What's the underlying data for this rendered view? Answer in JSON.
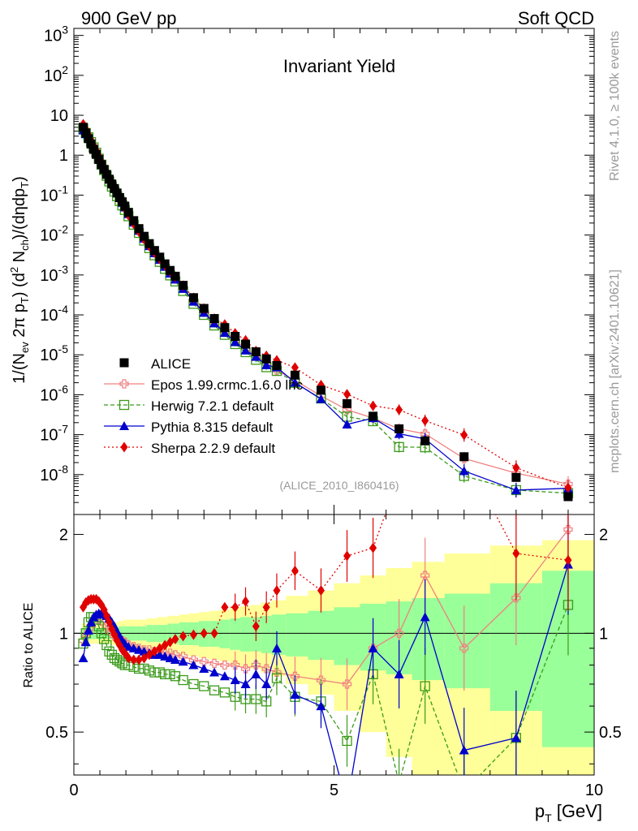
{
  "header": {
    "left": "900 GeV pp",
    "right": "Soft QCD",
    "side_top": "Rivet 4.1.0, ≥ 100k events",
    "side_bottom": "mcplots.cern.ch [arXiv:2401.10621]"
  },
  "chart_data": {
    "type": "scatter",
    "title": "Invariant Yield",
    "analysis_id": "(ALICE_2010_I860416)",
    "xlabel": "p_T [GeV]",
    "xlabel_main": "p",
    "xlabel_sub": "T",
    "xlabel_units": " [GeV]",
    "ylabel": "1/(N_ev 2π p_T) (d² N_ch)/(dηdp_T)",
    "ylabel_ratio": "Ratio to ALICE",
    "xlim": [
      0,
      10
    ],
    "ylim": [
      1e-09,
      1500
    ],
    "ylim_ratio": [
      0.37,
      2.3
    ],
    "yscale": "log",
    "x_ticks": [
      "0",
      "5",
      "10"
    ],
    "y_ticks": [
      "10^-8",
      "10^-7",
      "10^-6",
      "10^-5",
      "10^-4",
      "10^-3",
      "10^-2",
      "10^-1",
      "1",
      "10",
      "10^2",
      "10^3"
    ],
    "ratio_ticks": [
      "0.5",
      "1",
      "2"
    ],
    "legend": [
      {
        "name": "ALICE",
        "color": "#000000",
        "marker": "square-filled",
        "line": "none"
      },
      {
        "name": "Epos 1.99.crmc.1.6.0 lhc",
        "color": "#f08080",
        "marker": "cross-open",
        "line": "solid"
      },
      {
        "name": "Herwig 7.2.1 default",
        "color": "#3a9a1a",
        "marker": "square-open",
        "line": "dashed"
      },
      {
        "name": "Pythia 8.315 default",
        "color": "#0000cc",
        "marker": "triangle",
        "line": "solid"
      },
      {
        "name": "Sherpa 2.2.9 default",
        "color": "#e00000",
        "marker": "diamond",
        "line": "dotted"
      }
    ],
    "x": [
      0.18,
      0.23,
      0.28,
      0.33,
      0.38,
      0.43,
      0.48,
      0.53,
      0.58,
      0.63,
      0.68,
      0.73,
      0.78,
      0.83,
      0.88,
      0.93,
      0.98,
      1.05,
      1.15,
      1.25,
      1.35,
      1.45,
      1.55,
      1.65,
      1.75,
      1.85,
      1.95,
      2.1,
      2.3,
      2.5,
      2.7,
      2.9,
      3.1,
      3.3,
      3.5,
      3.7,
      3.9,
      4.25,
      4.75,
      5.25,
      5.75,
      6.25,
      6.75,
      7.5,
      8.5,
      9.5
    ],
    "alice": [
      5.0,
      3.6,
      2.6,
      1.9,
      1.4,
      1.05,
      0.78,
      0.58,
      0.44,
      0.33,
      0.25,
      0.19,
      0.146,
      0.113,
      0.087,
      0.068,
      0.053,
      0.037,
      0.023,
      0.0145,
      0.0093,
      0.0061,
      0.0041,
      0.0028,
      0.0019,
      0.0013,
      0.00093,
      0.00055,
      0.00027,
      0.000145,
      8.1e-05,
      4.8e-05,
      2.9e-05,
      1.85e-05,
      1.19e-05,
      7.9e-06,
      5.4e-06,
      3.1e-06,
      1.3e-06,
      6e-07,
      2.9e-07,
      1.4e-07,
      7e-08,
      2.8e-08,
      8.5e-09,
      2.8e-09
    ],
    "ratio_epos": [
      0.95,
      0.98,
      1.01,
      1.05,
      1.08,
      1.1,
      1.1,
      1.09,
      1.07,
      1.05,
      1.02,
      1.0,
      0.98,
      0.97,
      0.96,
      0.95,
      0.94,
      0.92,
      0.91,
      0.9,
      0.89,
      0.89,
      0.88,
      0.88,
      0.87,
      0.87,
      0.86,
      0.85,
      0.83,
      0.82,
      0.81,
      0.8,
      0.8,
      0.78,
      0.8,
      0.78,
      0.76,
      0.74,
      0.72,
      0.7,
      0.9,
      1.0,
      1.5,
      0.9,
      1.28,
      2.07
    ],
    "ratio_herwig": [
      0.93,
      1.0,
      1.08,
      1.12,
      1.12,
      1.1,
      1.05,
      1.0,
      0.96,
      0.92,
      0.88,
      0.86,
      0.84,
      0.83,
      0.82,
      0.81,
      0.8,
      0.8,
      0.79,
      0.78,
      0.78,
      0.77,
      0.76,
      0.76,
      0.75,
      0.75,
      0.74,
      0.72,
      0.7,
      0.69,
      0.67,
      0.66,
      0.64,
      0.63,
      0.63,
      0.62,
      0.73,
      0.64,
      0.62,
      0.47,
      0.75,
      0.35,
      0.69,
      0.33,
      0.48,
      1.22
    ],
    "ratio_pythia": [
      0.84,
      0.94,
      1.02,
      1.08,
      1.12,
      1.14,
      1.15,
      1.15,
      1.14,
      1.13,
      1.11,
      1.08,
      1.05,
      1.01,
      0.98,
      0.95,
      0.93,
      0.91,
      0.9,
      0.89,
      0.88,
      0.87,
      0.86,
      0.86,
      0.85,
      0.84,
      0.83,
      0.82,
      0.8,
      0.78,
      0.76,
      0.74,
      0.72,
      0.7,
      0.75,
      0.7,
      0.9,
      0.65,
      0.6,
      0.3,
      0.9,
      0.75,
      1.12,
      0.44,
      0.48,
      1.62
    ],
    "ratio_sherpa": [
      1.2,
      1.24,
      1.26,
      1.27,
      1.27,
      1.27,
      1.25,
      1.22,
      1.18,
      1.13,
      1.08,
      1.03,
      0.99,
      0.95,
      0.92,
      0.89,
      0.87,
      0.84,
      0.83,
      0.83,
      0.84,
      0.86,
      0.88,
      0.9,
      0.92,
      0.94,
      0.96,
      0.98,
      0.99,
      1.0,
      1.0,
      1.2,
      1.2,
      1.25,
      1.05,
      1.2,
      1.35,
      1.55,
      1.35,
      1.72,
      1.82,
      3.0,
      3.2,
      3.5,
      1.75,
      1.67
    ],
    "band_green_halfwidth": [
      0.04,
      0.04,
      0.04,
      0.04,
      0.04,
      0.04,
      0.04,
      0.04,
      0.04,
      0.04,
      0.04,
      0.04,
      0.04,
      0.04,
      0.05,
      0.05,
      0.05,
      0.05,
      0.05,
      0.05,
      0.05,
      0.06,
      0.06,
      0.06,
      0.06,
      0.07,
      0.07,
      0.08,
      0.08,
      0.09,
      0.09,
      0.1,
      0.11,
      0.12,
      0.12,
      0.13,
      0.14,
      0.15,
      0.17,
      0.2,
      0.23,
      0.25,
      0.28,
      0.32,
      0.42,
      0.55
    ],
    "band_yellow_halfwidth": [
      0.07,
      0.07,
      0.07,
      0.07,
      0.07,
      0.07,
      0.07,
      0.07,
      0.07,
      0.07,
      0.07,
      0.08,
      0.08,
      0.08,
      0.09,
      0.09,
      0.1,
      0.1,
      0.1,
      0.1,
      0.1,
      0.11,
      0.11,
      0.12,
      0.12,
      0.13,
      0.13,
      0.14,
      0.15,
      0.16,
      0.17,
      0.18,
      0.2,
      0.21,
      0.22,
      0.24,
      0.26,
      0.3,
      0.35,
      0.42,
      0.5,
      0.58,
      0.65,
      0.75,
      0.85,
      0.92
    ]
  }
}
